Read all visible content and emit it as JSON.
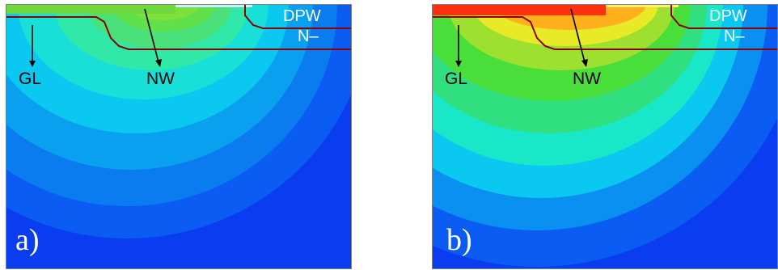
{
  "panels": [
    {
      "label": "a)",
      "region_labels": {
        "gl": "GL",
        "nw": "NW",
        "dpw": "DPW",
        "n_minus": "N–"
      },
      "colors": {
        "background": "#0a3cf0",
        "band1": "#0a5cf2",
        "band2": "#0a7cf0",
        "band3": "#0aa0f0",
        "band4": "#0ac8f0",
        "band5": "#18e0d8",
        "band6": "#30e8a8",
        "band7": "#4ae07a",
        "band8": "#60e04a",
        "band9": "#7ee03a",
        "hot": "#6ed83c",
        "edge": "#c8f0ff"
      }
    },
    {
      "label": "b)",
      "region_labels": {
        "gl": "GL",
        "nw": "NW",
        "dpw": "DPW",
        "n_minus": "N–"
      },
      "colors": {
        "background": "#0a3cf0",
        "band1": "#0a5cf2",
        "band2": "#0a90f0",
        "band3": "#0ac8f0",
        "band4": "#18e8c8",
        "band5": "#30e080",
        "band6": "#4ade3a",
        "band7": "#9ee030",
        "band8": "#e8ea28",
        "band9": "#ffb01c",
        "hot": "#ff3010",
        "edge": "#fff070"
      }
    }
  ],
  "colors": {
    "junction_line": "#8b0000",
    "arrow": "#000000",
    "frame": "#808080"
  }
}
